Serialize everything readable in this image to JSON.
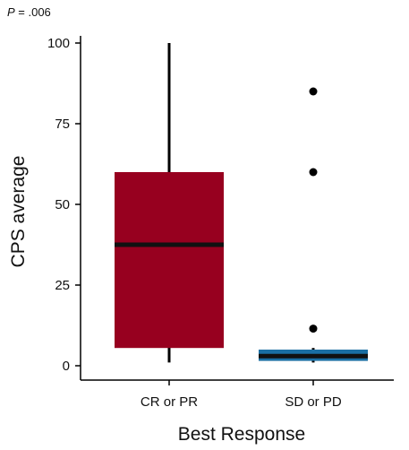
{
  "chart_data": {
    "type": "box",
    "title": "",
    "annotation": {
      "prefix": "P",
      "rest": " = .006"
    },
    "xlabel": "Best Response",
    "ylabel": "CPS average",
    "ylim": [
      0,
      100
    ],
    "yticks": [
      0,
      25,
      50,
      75,
      100
    ],
    "grid": false,
    "legend": "none",
    "series": [
      {
        "category": "CR or PR",
        "whisker_low": 1,
        "q1": 5.5,
        "median": 37.5,
        "q3": 60,
        "whisker_high": 100,
        "outliers": [],
        "color": "#97001f"
      },
      {
        "category": "SD or PD",
        "whisker_low": 1,
        "q1": 1.5,
        "median": 3,
        "q3": 5,
        "whisker_high": 5.5,
        "outliers": [
          11.5,
          60,
          85
        ],
        "color": "#1a6fa3"
      }
    ]
  }
}
